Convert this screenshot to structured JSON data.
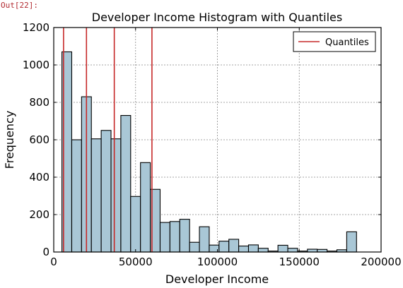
{
  "cell_output": "Out[22]:",
  "chart_data": {
    "type": "bar",
    "title": "Developer Income Histogram with Quantiles",
    "xlabel": "Developer Income",
    "ylabel": "Frequency",
    "xlim": [
      0,
      200000
    ],
    "ylim": [
      0,
      1200
    ],
    "xticks": [
      "0",
      "50000",
      "100000",
      "150000",
      "200000"
    ],
    "yticks": [
      "0",
      "200",
      "400",
      "600",
      "800",
      "1000",
      "1200"
    ],
    "grid": true,
    "legend_position": "top-right",
    "bar_color": "#a9c7d6",
    "quantile_color": "#c62828",
    "bin_width": 6000,
    "bin_edges_start": 5000,
    "values": [
      1070,
      600,
      830,
      605,
      650,
      605,
      730,
      297,
      478,
      335,
      158,
      163,
      175,
      52,
      135,
      37,
      58,
      68,
      32,
      38,
      20,
      5,
      36,
      20,
      5,
      15,
      14,
      5,
      12,
      108
    ],
    "quantiles": [
      {
        "name": "Quantiles",
        "x": 6000
      },
      {
        "name": "",
        "x": 20000
      },
      {
        "name": "",
        "x": 37000
      },
      {
        "name": "",
        "x": 60000
      }
    ],
    "legend": [
      "Quantiles"
    ]
  }
}
